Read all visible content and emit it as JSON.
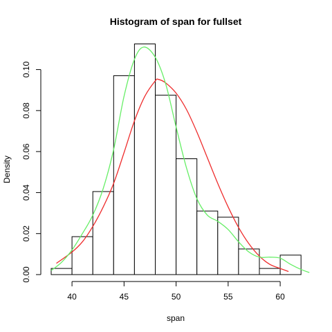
{
  "chart_data": {
    "type": "bar",
    "title": "Histogram of span for fullset",
    "xlabel": "span",
    "ylabel": "Density",
    "xlim": [
      38,
      62
    ],
    "ylim": [
      0,
      0.112
    ],
    "x_ticks": [
      40,
      45,
      50,
      55,
      60
    ],
    "y_ticks": [
      0.0,
      0.02,
      0.04,
      0.06,
      0.08,
      0.1
    ],
    "y_tick_labels": [
      "0.00",
      "0.02",
      "0.04",
      "0.06",
      "0.08",
      "0.10"
    ],
    "bins": [
      {
        "x0": 38,
        "x1": 40,
        "value": 0.003
      },
      {
        "x0": 40,
        "x1": 42,
        "value": 0.0185
      },
      {
        "x0": 42,
        "x1": 44,
        "value": 0.0405
      },
      {
        "x0": 44,
        "x1": 46,
        "value": 0.097
      },
      {
        "x0": 46,
        "x1": 48,
        "value": 0.1125
      },
      {
        "x0": 48,
        "x1": 50,
        "value": 0.0875
      },
      {
        "x0": 50,
        "x1": 52,
        "value": 0.0565
      },
      {
        "x0": 52,
        "x1": 54,
        "value": 0.031
      },
      {
        "x0": 54,
        "x1": 56,
        "value": 0.028
      },
      {
        "x0": 56,
        "x1": 58,
        "value": 0.0125
      },
      {
        "x0": 58,
        "x1": 60,
        "value": 0.003
      },
      {
        "x0": 60,
        "x1": 62,
        "value": 0.0095
      }
    ],
    "lines": [
      {
        "color": "#ee2c2c",
        "x": [
          38.5,
          40,
          41,
          42,
          43,
          44,
          45,
          46,
          47,
          48,
          48.3,
          49,
          50,
          51,
          52,
          53,
          54,
          55,
          56,
          57,
          58,
          59,
          60,
          60.8
        ],
        "y": [
          0.0055,
          0.011,
          0.016,
          0.0235,
          0.033,
          0.0445,
          0.0595,
          0.075,
          0.087,
          0.0945,
          0.0952,
          0.0935,
          0.0885,
          0.0805,
          0.0695,
          0.057,
          0.0445,
          0.033,
          0.023,
          0.015,
          0.009,
          0.005,
          0.003,
          0.0015
        ]
      },
      {
        "color": "#66ee66",
        "x": [
          38,
          39,
          40,
          41,
          42,
          43,
          44,
          45,
          46,
          46.9,
          48,
          49,
          50,
          51,
          52,
          53,
          54,
          55,
          56,
          57,
          58,
          59,
          60,
          61,
          62,
          62.8
        ],
        "y": [
          0.002,
          0.006,
          0.012,
          0.02,
          0.029,
          0.042,
          0.061,
          0.087,
          0.105,
          0.111,
          0.106,
          0.093,
          0.072,
          0.052,
          0.037,
          0.029,
          0.026,
          0.022,
          0.016,
          0.011,
          0.0085,
          0.0085,
          0.008,
          0.005,
          0.0025,
          0.001
        ]
      }
    ]
  }
}
